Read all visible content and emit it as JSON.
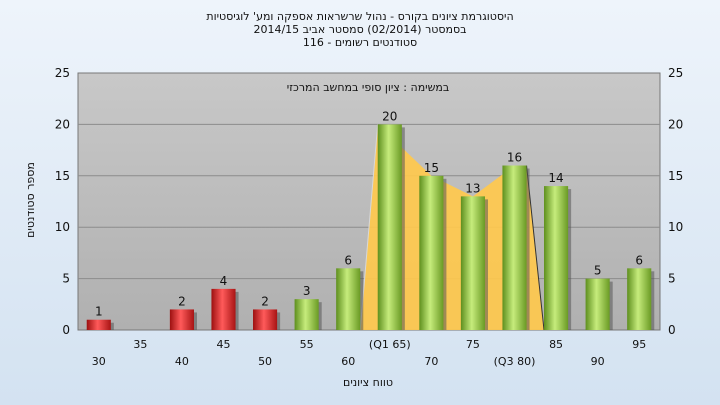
{
  "chart_data": {
    "type": "bar",
    "title_lines": [
      "היסטוגרמת ציונים בקורס - נהול שרשראות אספקה ומע' לוגיסטיות",
      "בסמסטר  (02/2014)  סמסטר אביב 2014/15",
      "סטודנטים רשומים - 116"
    ],
    "annotation": "במשימה : ציון סופי במחשב המרכזי",
    "xlabel": "טווח ציונים",
    "ylabel": "מספר סטודנטים",
    "ylim": [
      0,
      25
    ],
    "yticks": [
      0,
      5,
      10,
      15,
      20,
      25
    ],
    "categories": [
      "30",
      "35",
      "40",
      "45",
      "50",
      "55",
      "60",
      "(Q1 65)",
      "70",
      "75",
      "(Q3 80)",
      "85",
      "90",
      "95"
    ],
    "values": [
      1,
      0,
      2,
      4,
      2,
      3,
      6,
      20,
      15,
      13,
      16,
      14,
      5,
      6
    ],
    "bar_colors": [
      "red",
      "red",
      "red",
      "red",
      "red",
      "green",
      "green",
      "green",
      "green",
      "green",
      "green",
      "green",
      "green",
      "green"
    ],
    "iqr_band": {
      "from": "(Q1 65)",
      "to": "(Q3 80)"
    },
    "grid": true,
    "colors": {
      "red": "#d42a2a",
      "green": "#8cc43c",
      "iqr": "#ffc94d",
      "plot_bg": "#bdbdbd"
    }
  }
}
